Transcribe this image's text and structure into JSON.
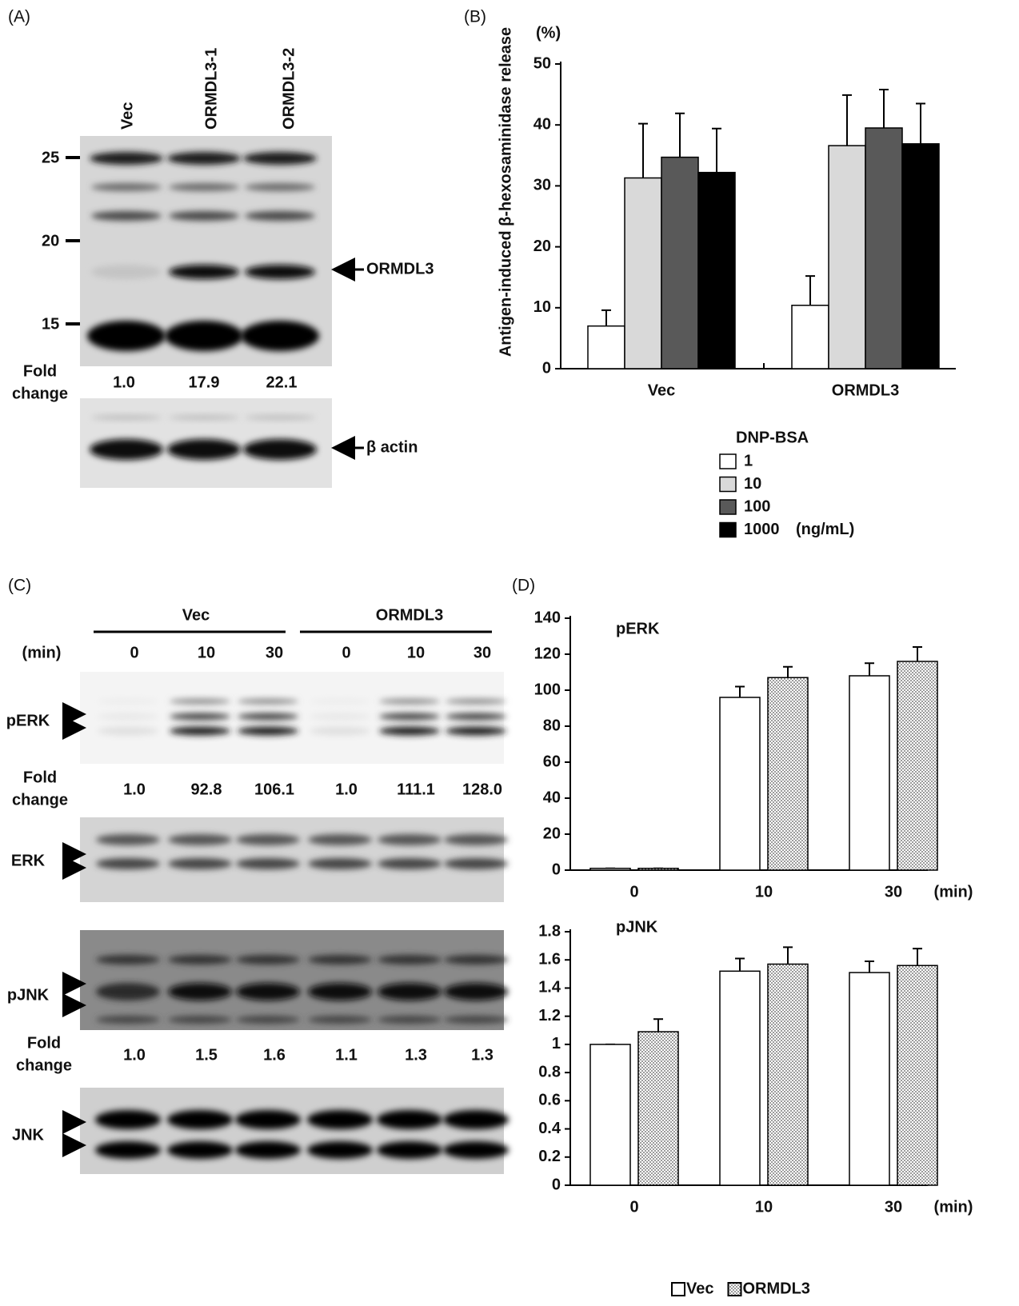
{
  "blot_a": {
    "panel_label": "(A)",
    "lanes": [
      "Vec",
      "ORMDL3-1",
      "ORMDL3-2"
    ],
    "markers": [
      "25",
      "20",
      "15"
    ],
    "fold_label": [
      "Fold",
      "change"
    ],
    "fold_values": [
      "1.0",
      "17.9",
      "22.1"
    ],
    "band_label": "ORMDL3",
    "loading_label": "β actin"
  },
  "blot_c": {
    "panel_label": "(C)",
    "groups": [
      "Vec",
      "ORMDL3"
    ],
    "time_label": "(min)",
    "times": [
      "0",
      "10",
      "30",
      "0",
      "10",
      "30"
    ],
    "rows": [
      "pERK",
      "ERK",
      "pJNK",
      "JNK"
    ],
    "fold_label": [
      "Fold",
      "change"
    ],
    "perk_fold": [
      "1.0",
      "92.8",
      "106.1",
      "1.0",
      "111.1",
      "128.0"
    ],
    "pjnk_fold": [
      "1.0",
      "1.5",
      "1.6",
      "1.1",
      "1.3",
      "1.3"
    ]
  },
  "chart_data": [
    {
      "type": "bar",
      "panel_label": "(B)",
      "y_label": "Antigen-induced β-hexosaminidase release",
      "y_unit": "(%)",
      "categories": [
        "Vec",
        "ORMDL3"
      ],
      "legend_title": "DNP-BSA",
      "legend_unit": "(ng/mL)",
      "series": [
        {
          "name": "1",
          "color": "#ffffff",
          "values": [
            7.0,
            10.4
          ],
          "errors": [
            2.6,
            4.8
          ]
        },
        {
          "name": "10",
          "color": "#d9d9d9",
          "values": [
            31.3,
            36.6
          ],
          "errors": [
            8.9,
            8.3
          ]
        },
        {
          "name": "100",
          "color": "#595959",
          "values": [
            34.7,
            39.5
          ],
          "errors": [
            7.2,
            6.3
          ]
        },
        {
          "name": "1000",
          "color": "#000000",
          "values": [
            32.2,
            36.9
          ],
          "errors": [
            7.2,
            6.6
          ]
        }
      ],
      "ylim": [
        0,
        50
      ],
      "yticks": [
        0,
        10,
        20,
        30,
        40,
        50
      ]
    },
    {
      "type": "bar",
      "panel_label": "(D)",
      "title": "pERK",
      "x_label": "(min)",
      "categories": [
        "0",
        "10",
        "30"
      ],
      "series": [
        {
          "color": "#ffffff",
          "values": [
            1,
            96,
            108
          ],
          "errors": [
            0,
            6,
            7
          ]
        },
        {
          "color": "#ffffff",
          "fill_pattern": "dots",
          "values": [
            1,
            107,
            116
          ],
          "errors": [
            0,
            6,
            8
          ]
        }
      ],
      "ylim": [
        0,
        140
      ],
      "yticks": [
        0,
        20,
        40,
        60,
        80,
        100,
        120,
        140
      ]
    },
    {
      "type": "bar",
      "title": "pJNK",
      "x_label": "(min)",
      "categories": [
        "0",
        "10",
        "30"
      ],
      "series": [
        {
          "name": "Vec",
          "color": "#ffffff",
          "values": [
            1,
            1.52,
            1.51
          ],
          "errors": [
            0,
            0.09,
            0.08
          ]
        },
        {
          "name": "ORMDL3",
          "color": "#ffffff",
          "fill_pattern": "dots",
          "values": [
            1.09,
            1.57,
            1.56
          ],
          "errors": [
            0.09,
            0.12,
            0.12
          ]
        }
      ],
      "ylim": [
        0,
        1.8
      ],
      "yticks": [
        0,
        0.2,
        0.4,
        0.6,
        0.8,
        1,
        1.2,
        1.4,
        1.6,
        1.8
      ]
    }
  ]
}
